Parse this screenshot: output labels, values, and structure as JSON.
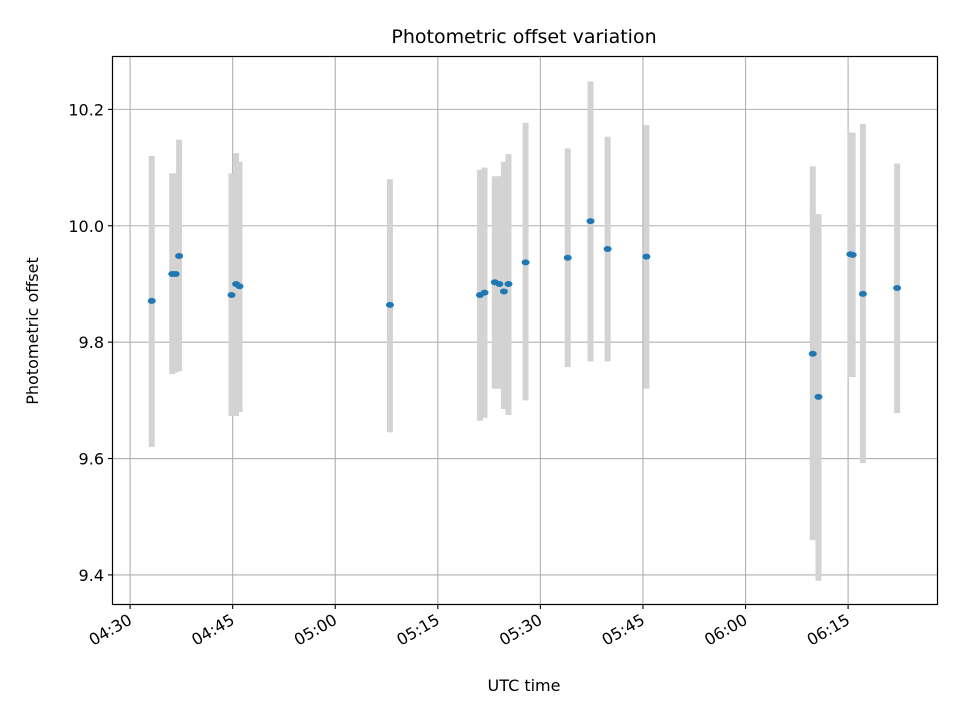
{
  "chart_data": {
    "type": "scatter",
    "title": "Photometric offset variation",
    "xlabel": "UTC time",
    "ylabel": "Photometric offset",
    "x_ticks": [
      "04:30",
      "04:45",
      "05:00",
      "05:15",
      "05:30",
      "05:45",
      "06:00",
      "06:15"
    ],
    "y_ticks": [
      "9.4",
      "9.6",
      "9.8",
      "10.0",
      "10.2"
    ],
    "xlim": [
      "04:27:30",
      "06:28:00"
    ],
    "ylim": [
      9.35,
      10.29
    ],
    "grid": true,
    "colors": {
      "point": "#1f77b4",
      "error_bar": "#d3d3d3",
      "grid": "#b0b0b0"
    },
    "points": [
      {
        "t": "04:33:10",
        "y": 9.871,
        "lo": 9.62,
        "hi": 10.12
      },
      {
        "t": "04:36:10",
        "y": 9.917,
        "lo": 9.745,
        "hi": 10.09
      },
      {
        "t": "04:36:40",
        "y": 9.917,
        "lo": 9.748,
        "hi": 10.09
      },
      {
        "t": "04:37:10",
        "y": 9.948,
        "lo": 9.75,
        "hi": 10.148
      },
      {
        "t": "04:44:50",
        "y": 9.881,
        "lo": 9.673,
        "hi": 10.09
      },
      {
        "t": "04:45:30",
        "y": 9.9,
        "lo": 9.673,
        "hi": 10.125
      },
      {
        "t": "04:46:00",
        "y": 9.896,
        "lo": 9.68,
        "hi": 10.11
      },
      {
        "t": "05:08:00",
        "y": 9.864,
        "lo": 9.645,
        "hi": 10.08
      },
      {
        "t": "05:21:10",
        "y": 9.881,
        "lo": 9.665,
        "hi": 10.096
      },
      {
        "t": "05:21:50",
        "y": 9.885,
        "lo": 9.67,
        "hi": 10.1
      },
      {
        "t": "05:23:20",
        "y": 9.903,
        "lo": 9.72,
        "hi": 10.085
      },
      {
        "t": "05:24:00",
        "y": 9.9,
        "lo": 9.72,
        "hi": 10.085
      },
      {
        "t": "05:24:40",
        "y": 9.887,
        "lo": 9.685,
        "hi": 10.11
      },
      {
        "t": "05:25:20",
        "y": 9.9,
        "lo": 9.675,
        "hi": 10.123
      },
      {
        "t": "05:27:50",
        "y": 9.937,
        "lo": 9.7,
        "hi": 10.177
      },
      {
        "t": "05:34:00",
        "y": 9.945,
        "lo": 9.757,
        "hi": 10.133
      },
      {
        "t": "05:37:20",
        "y": 10.008,
        "lo": 9.767,
        "hi": 10.248
      },
      {
        "t": "05:39:50",
        "y": 9.96,
        "lo": 9.767,
        "hi": 10.153
      },
      {
        "t": "05:45:30",
        "y": 9.947,
        "lo": 9.72,
        "hi": 10.173
      },
      {
        "t": "06:09:50",
        "y": 9.78,
        "lo": 9.46,
        "hi": 10.102
      },
      {
        "t": "06:10:40",
        "y": 9.706,
        "lo": 9.39,
        "hi": 10.02
      },
      {
        "t": "06:15:20",
        "y": 9.951,
        "lo": 9.74,
        "hi": 10.16
      },
      {
        "t": "06:15:40",
        "y": 9.95,
        "lo": 9.74,
        "hi": 10.16
      },
      {
        "t": "06:17:10",
        "y": 9.883,
        "lo": 9.592,
        "hi": 10.175
      },
      {
        "t": "06:22:10",
        "y": 9.893,
        "lo": 9.678,
        "hi": 10.107
      }
    ]
  }
}
